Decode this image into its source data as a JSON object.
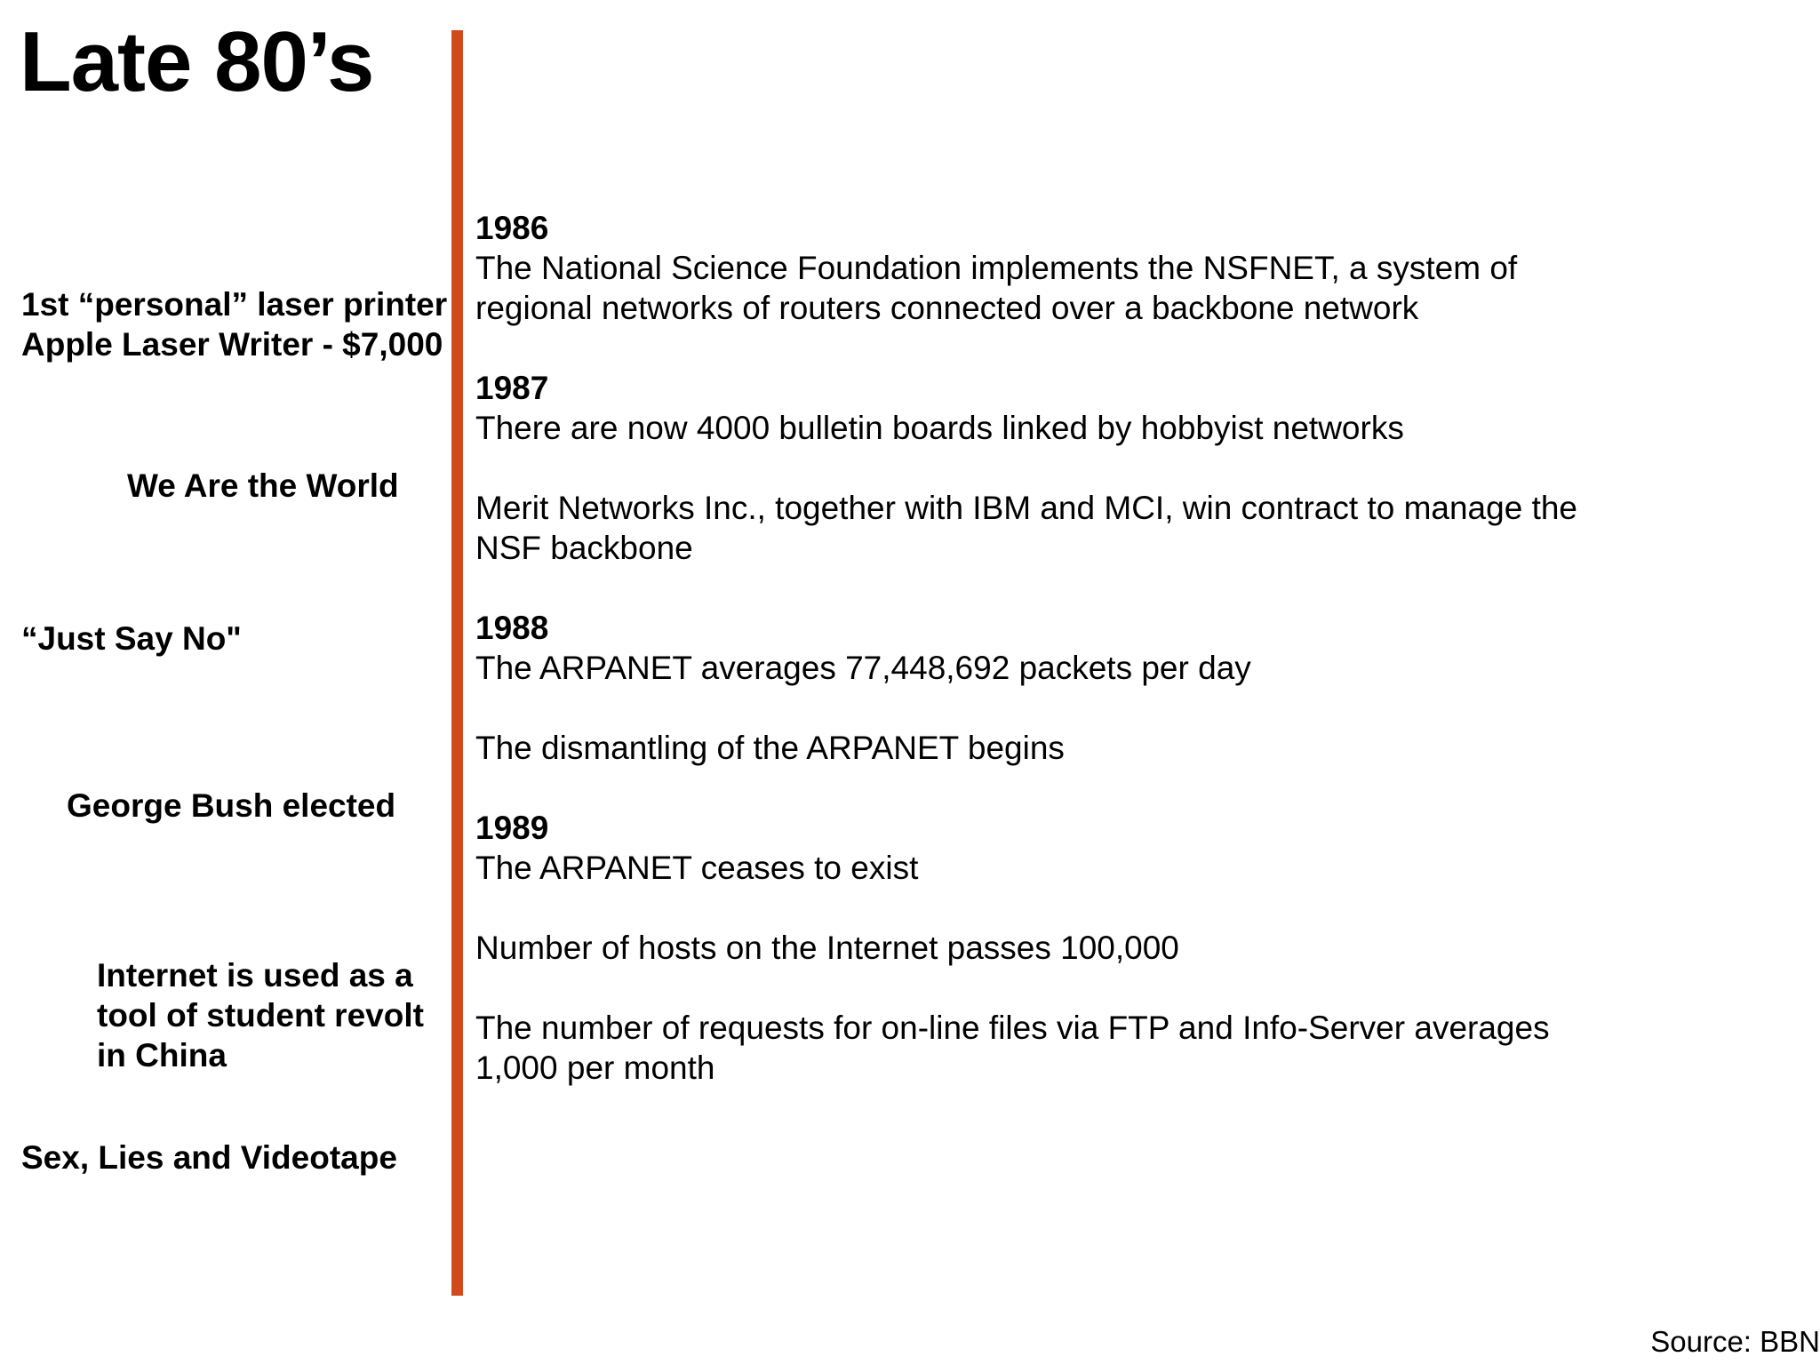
{
  "title": "Late 80’s",
  "accent_color": "#d04a1e",
  "side_notes": {
    "laser_printer": [
      "1st “personal” laser printer",
      "Apple Laser Writer - $7,000"
    ],
    "we_are_the_world": [
      "We Are the World"
    ],
    "just_say_no": [
      "“Just Say No\""
    ],
    "george_bush": [
      "George Bush elected"
    ],
    "student_revolt": [
      "Internet is used as a",
      "tool of student revolt",
      "in China"
    ],
    "sex_lies": [
      "Sex, Lies and Videotape"
    ]
  },
  "events": {
    "y1986": {
      "year": "1986",
      "items": [
        [
          "The National Science Foundation implements the NSFNET, a system of",
          "regional networks of routers connected over a backbone network"
        ]
      ]
    },
    "y1987": {
      "year": "1987",
      "items": [
        [
          "There are now 4000 bulletin boards linked by hobbyist networks"
        ],
        [
          "Merit Networks Inc., together with IBM and MCI, win contract to manage the",
          "NSF backbone"
        ]
      ]
    },
    "y1988": {
      "year": "1988",
      "items": [
        [
          "The ARPANET averages 77,448,692 packets per day"
        ],
        [
          "The dismantling of the ARPANET begins"
        ]
      ]
    },
    "y1989": {
      "year": "1989",
      "items": [
        [
          "The ARPANET ceases to exist"
        ],
        [
          "Number of hosts on the Internet passes 100,000"
        ],
        [
          "The number of requests for on-line files via FTP and Info-Server averages",
          "1,000 per month"
        ]
      ]
    }
  },
  "source": "Source: BBN"
}
